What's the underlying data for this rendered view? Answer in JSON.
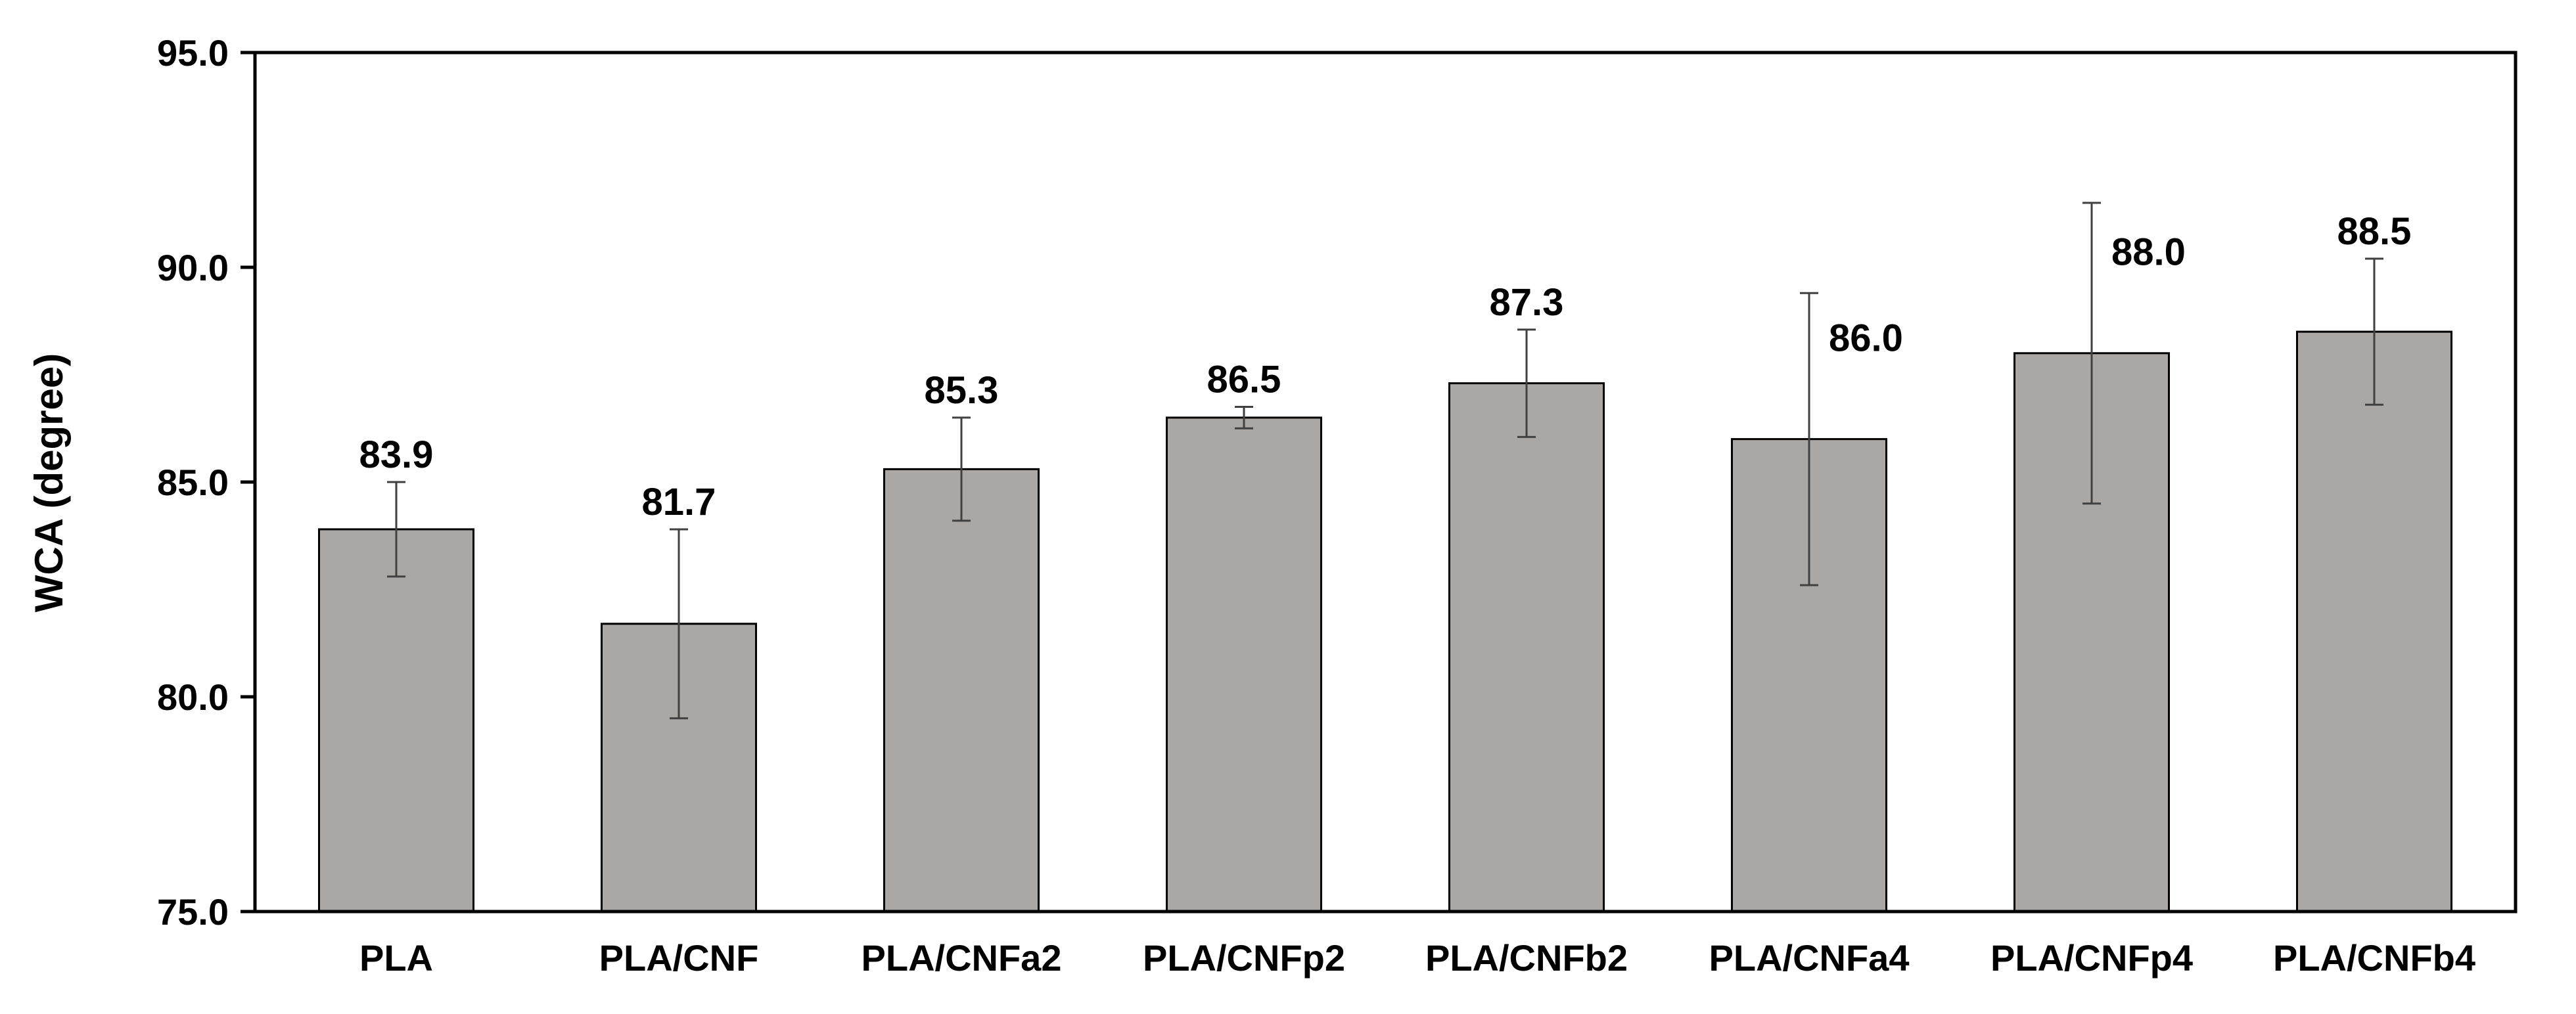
{
  "chart_data": {
    "type": "bar",
    "title": "",
    "xlabel": "",
    "ylabel": "WCA (degree)",
    "ylim": [
      75.0,
      95.0
    ],
    "yticks": [
      75.0,
      80.0,
      85.0,
      90.0,
      95.0
    ],
    "ytick_labels": [
      "75.0",
      "80.0",
      "85.0",
      "90.0",
      "95.0"
    ],
    "categories": [
      "PLA",
      "PLA/CNF",
      "PLA/CNFa2",
      "PLA/CNFp2",
      "PLA/CNFb2",
      "PLA/CNFa4",
      "PLA/CNFp4",
      "PLA/CNFb4"
    ],
    "values": [
      83.9,
      81.7,
      85.3,
      86.5,
      87.3,
      86.0,
      88.0,
      88.5
    ],
    "value_labels": [
      "83.9",
      "81.7",
      "85.3",
      "86.5",
      "87.3",
      "86.0",
      "88.0",
      "88.5"
    ],
    "errors": [
      1.1,
      2.2,
      1.2,
      0.25,
      1.25,
      3.4,
      3.5,
      1.7
    ],
    "grid": false,
    "legend": "none",
    "bar_color": "#aba7a5",
    "bar_edge_color": "#000000",
    "error_bar_color": "#404040"
  }
}
